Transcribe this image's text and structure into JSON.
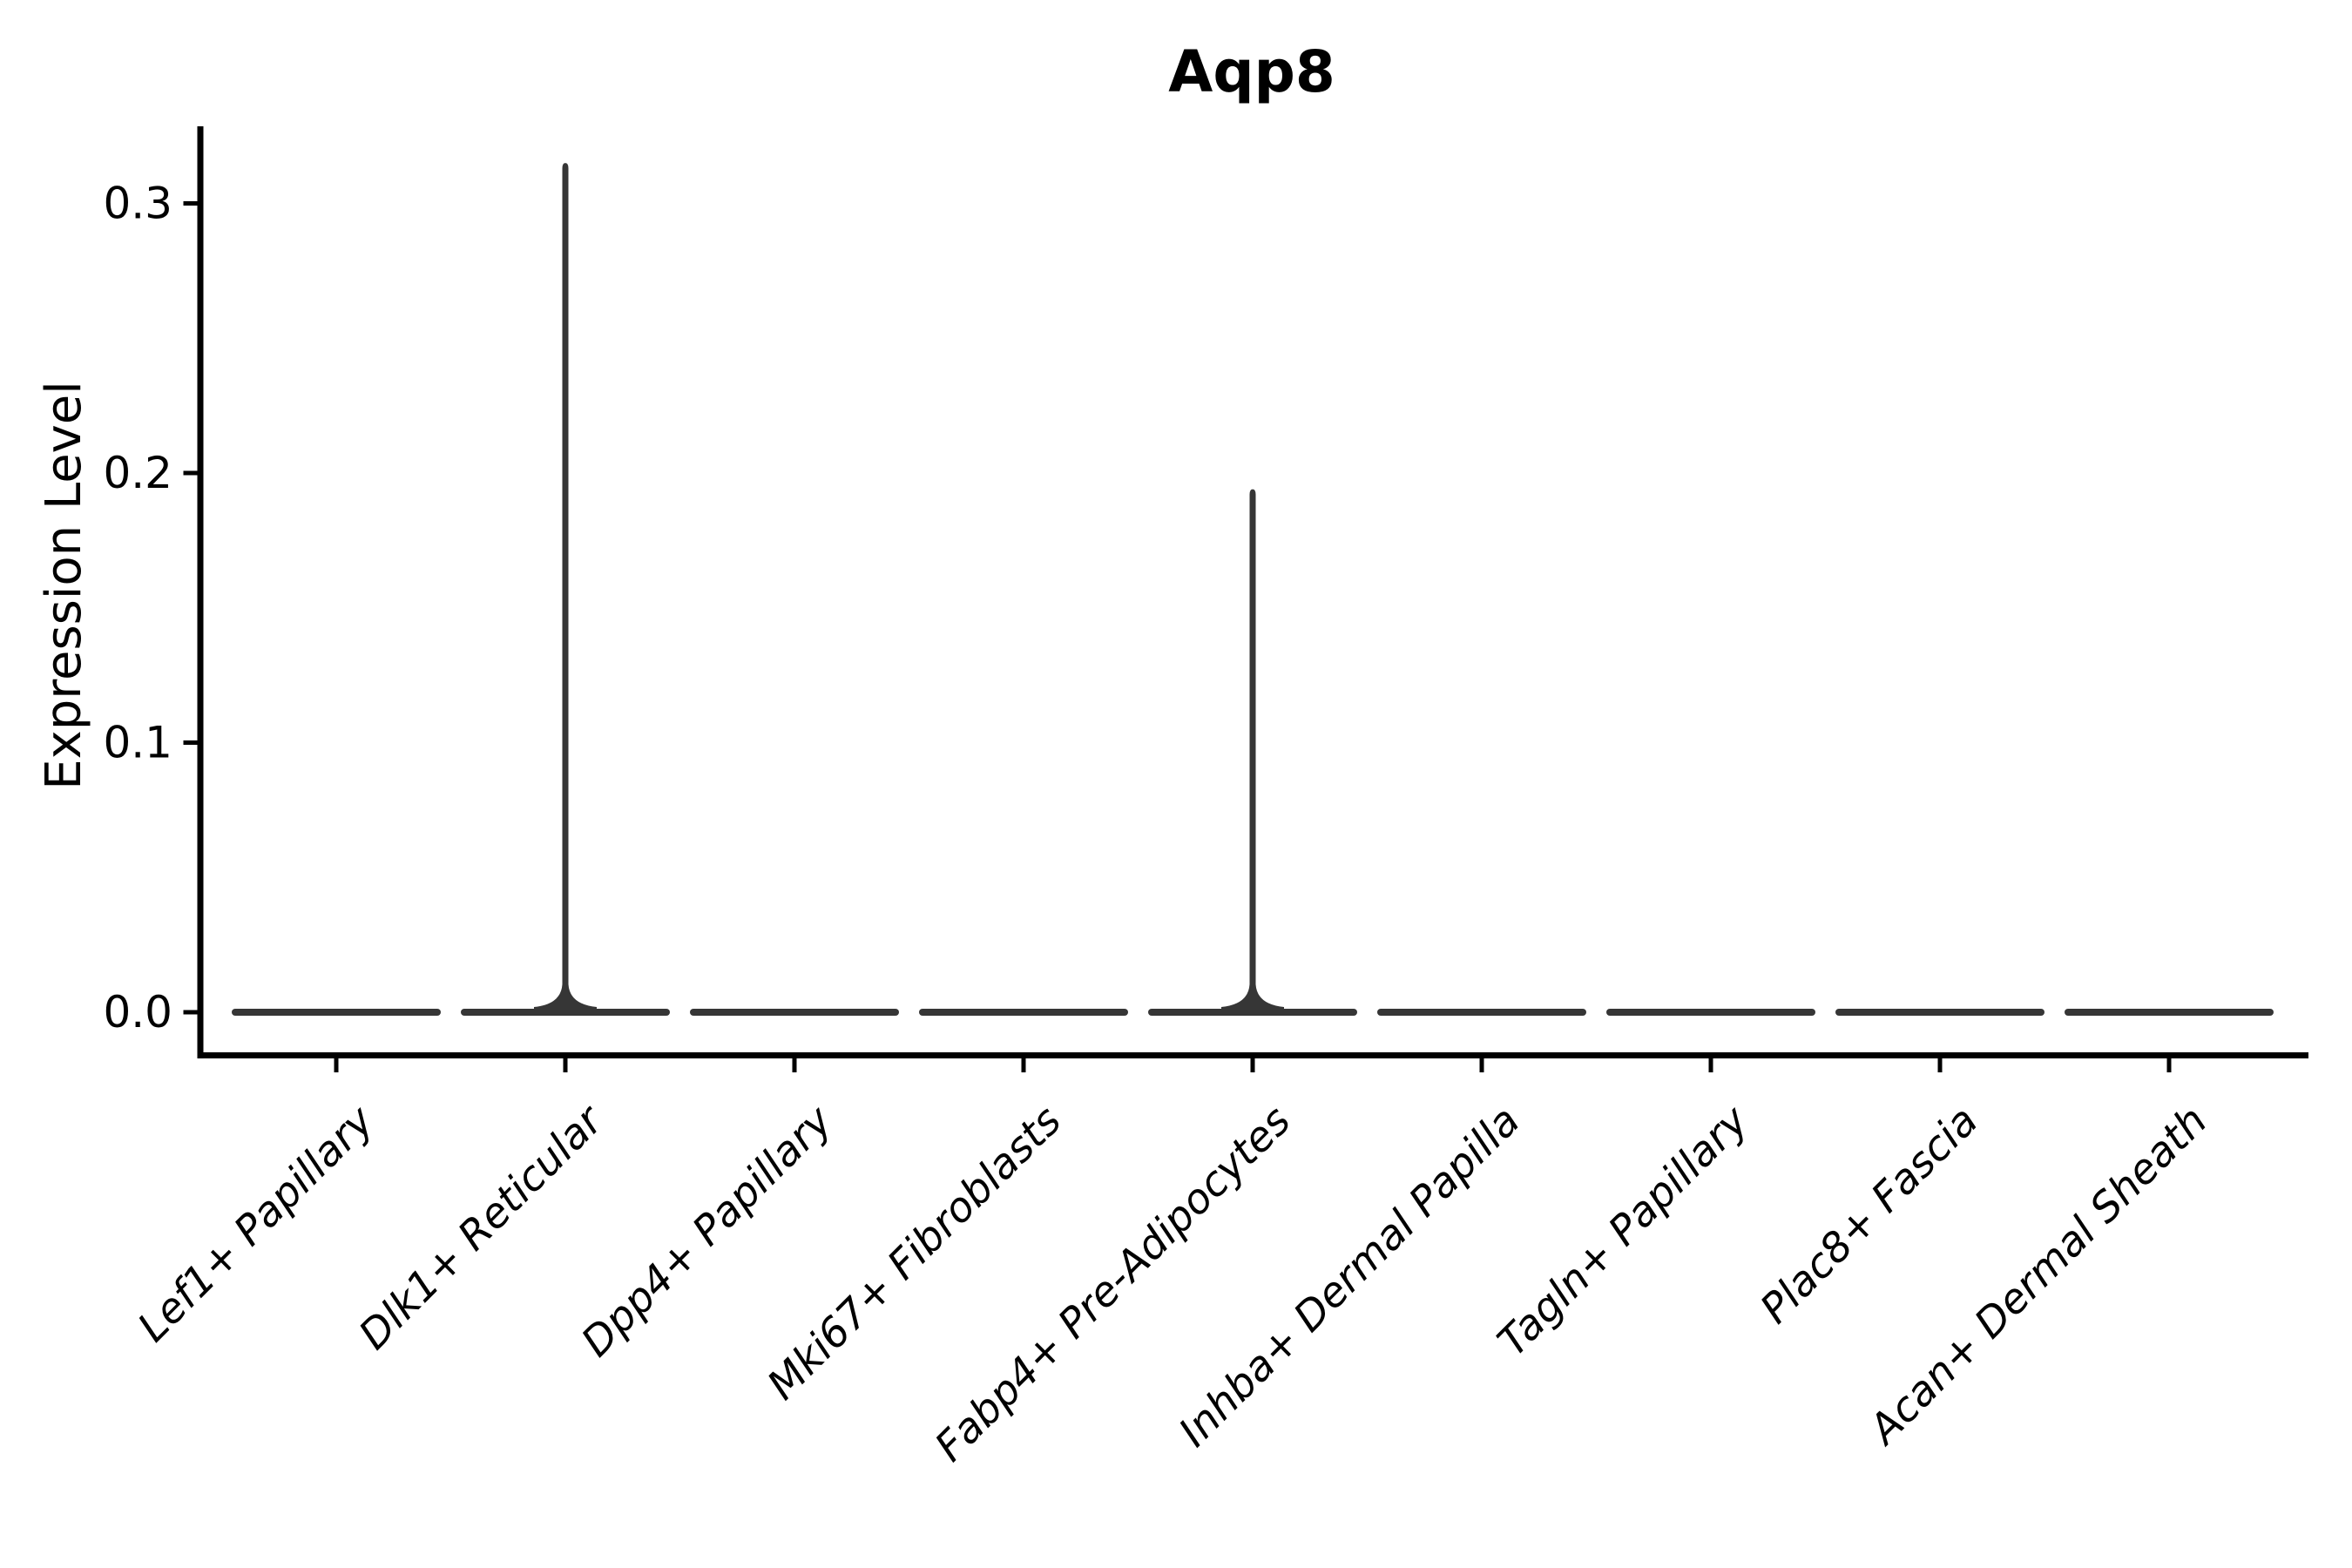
{
  "title": "Aqp8",
  "y_axis": {
    "label": "Expression Level",
    "tick_labels": [
      "0.0",
      "0.1",
      "0.2",
      "0.3"
    ]
  },
  "x_axis": {
    "tick_labels": [
      "Lef1+ Papillary",
      "Dlk1+ Reticular",
      "Dpp4+ Papillary",
      "Mki67+ Fibroblasts",
      "Fabp4+ Pre-Adipocytes",
      "Inhba+ Dermal Papilla",
      "Tagln+ Papillary",
      "Plac8+ Fascia",
      "Acan+ Dermal Sheath"
    ]
  },
  "chart_data": {
    "type": "violin",
    "title": "Aqp8",
    "xlabel": "",
    "ylabel": "Expression Level",
    "categories": [
      "Lef1+ Papillary",
      "Dlk1+ Reticular",
      "Dpp4+ Papillary",
      "Mki67+ Fibroblasts",
      "Fabp4+ Pre-Adipocytes",
      "Inhba+ Dermal Papilla",
      "Tagln+ Papillary",
      "Plac8+ Fascia",
      "Acan+ Dermal Sheath"
    ],
    "series": [
      {
        "name": "Lef1+ Papillary",
        "baseline": 0.0,
        "peak_expression": 0.0
      },
      {
        "name": "Dlk1+ Reticular",
        "baseline": 0.0,
        "peak_expression": 0.315
      },
      {
        "name": "Dpp4+ Papillary",
        "baseline": 0.0,
        "peak_expression": 0.0
      },
      {
        "name": "Mki67+ Fibroblasts",
        "baseline": 0.0,
        "peak_expression": 0.0
      },
      {
        "name": "Fabp4+ Pre-Adipocytes",
        "baseline": 0.0,
        "peak_expression": 0.194
      },
      {
        "name": "Inhba+ Dermal Papilla",
        "baseline": 0.0,
        "peak_expression": 0.0
      },
      {
        "name": "Tagln+ Papillary",
        "baseline": 0.0,
        "peak_expression": 0.0
      },
      {
        "name": "Plac8+ Fascia",
        "baseline": 0.0,
        "peak_expression": 0.0
      },
      {
        "name": "Acan+ Dermal Sheath",
        "baseline": 0.0,
        "peak_expression": 0.0
      }
    ],
    "yticks": [
      0.0,
      0.1,
      0.2,
      0.3
    ],
    "ylim": [
      -0.016,
      0.3286
    ],
    "grid": false,
    "legend_position": null,
    "note": "All violins are collapsed flat at expression level 0; Dlk1+ Reticular and Fabp4+ Pre-Adipocytes show thin vertical spikes from rare expressing cells.",
    "violin_color": "#363636",
    "axis_color": "#000000",
    "background_color": "#ffffff"
  }
}
